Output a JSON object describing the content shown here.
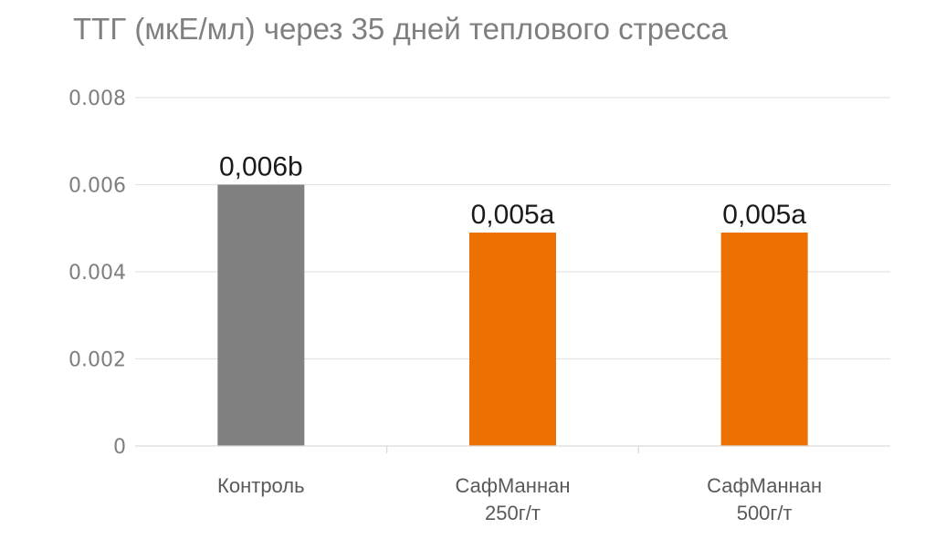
{
  "chart_data": {
    "type": "bar",
    "title": "ТТГ (мкЕ/мл) через 35 дней теплового стресса",
    "xlabel": "",
    "ylabel": "",
    "categories": [
      [
        "Контроль"
      ],
      [
        "СафМаннан",
        "250г/т"
      ],
      [
        "СафМаннан",
        "500г/т"
      ]
    ],
    "values": [
      0.006,
      0.0049,
      0.0049
    ],
    "data_labels": [
      "0,006b",
      "0,005a",
      "0,005a"
    ],
    "colors": [
      "#808080",
      "#ed7102",
      "#ed7102"
    ],
    "ylim": [
      0,
      0.008
    ],
    "yticks": [
      0,
      0.002,
      0.004,
      0.006,
      0.008
    ],
    "ytick_labels": [
      "0",
      "0.002",
      "0.004",
      "0.006",
      "0.008"
    ],
    "grid": true,
    "legend": "none"
  }
}
